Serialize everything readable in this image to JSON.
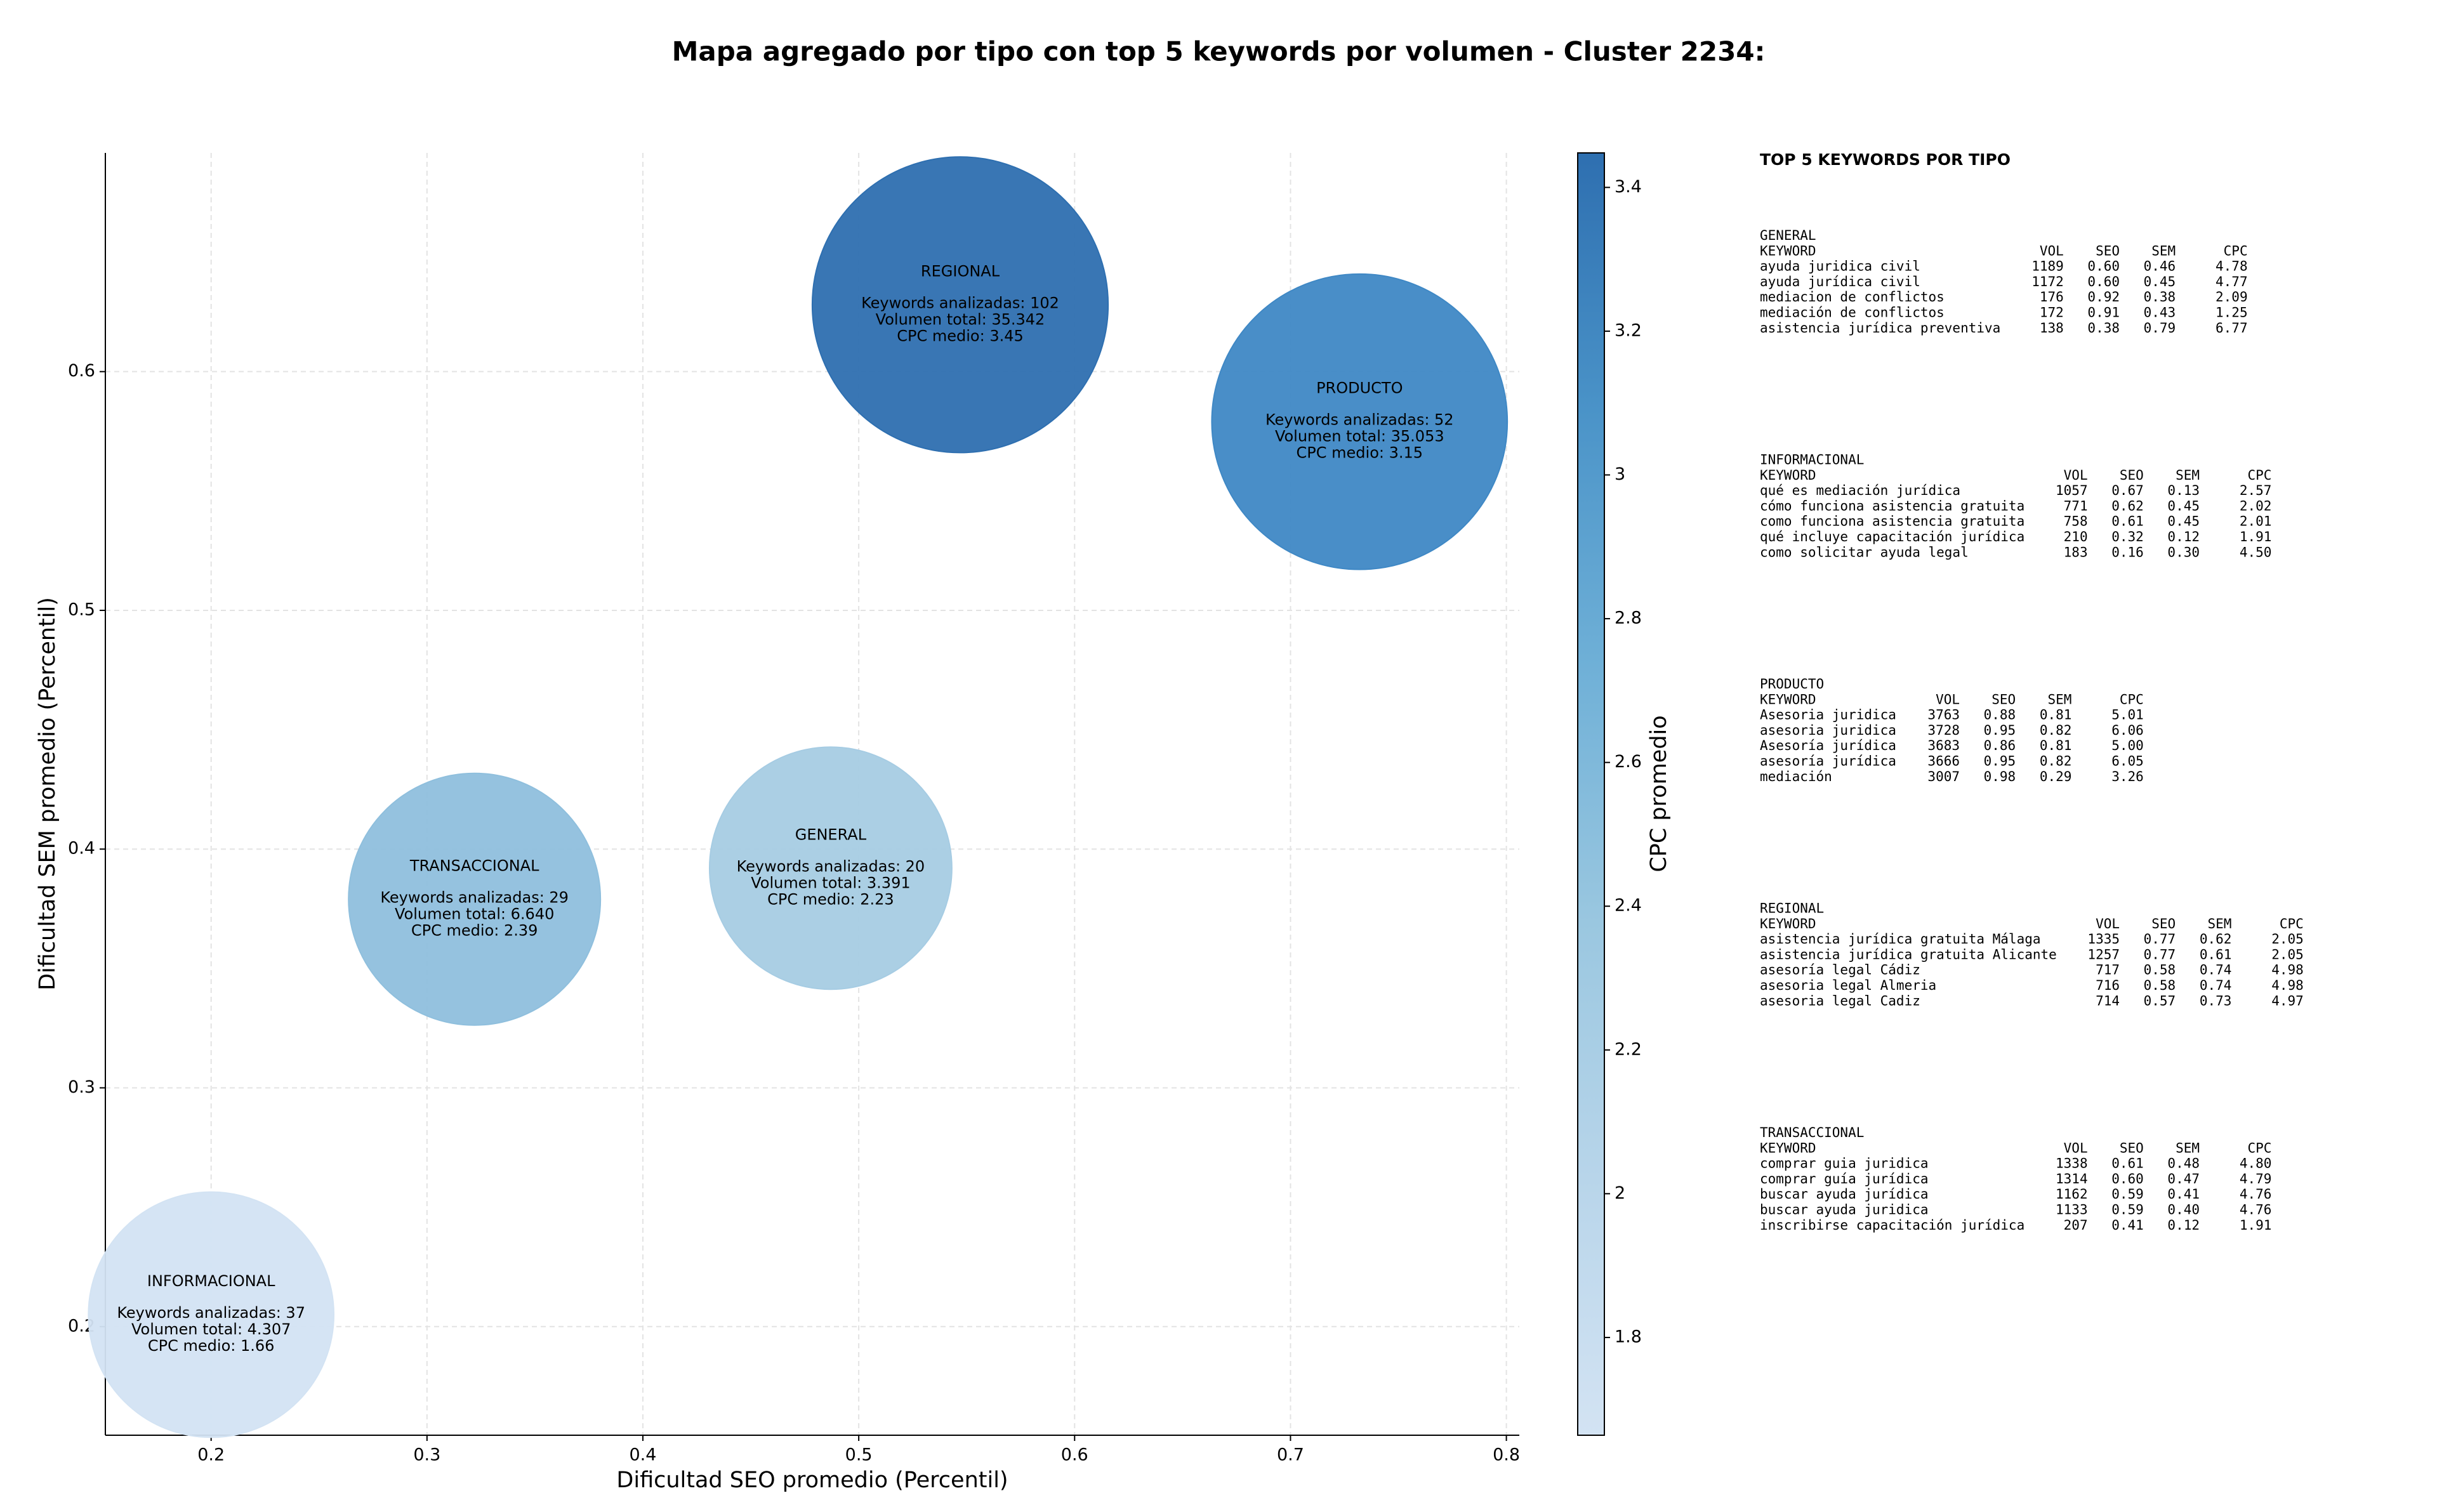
{
  "chart_data": {
    "type": "bubble",
    "title": "Mapa agregado por tipo con top 5 keywords por volumen - Cluster 2234:",
    "xlabel": "Dificultad SEO promedio (Percentil)",
    "ylabel": "Dificultad SEM promedio (Percentil)",
    "xlim": [
      0.151,
      0.806
    ],
    "ylim": [
      0.1545,
      0.6916
    ],
    "xticks": [
      0.2,
      0.3,
      0.4,
      0.5,
      0.6,
      0.7,
      0.8
    ],
    "yticks": [
      0.2,
      0.3,
      0.4,
      0.5,
      0.6
    ],
    "grid": true,
    "points": [
      {
        "name": "REGIONAL",
        "x": 0.547,
        "y": 0.628,
        "volume": 35342,
        "cpc": 3.45,
        "color": "#2e6fb0",
        "lines": [
          "Keywords analizadas: 102",
          "Volumen total: 35.342",
          "CPC medio: 3.45"
        ]
      },
      {
        "name": "PRODUCTO",
        "x": 0.732,
        "y": 0.579,
        "volume": 35053,
        "cpc": 3.15,
        "color": "#3f88c5",
        "lines": [
          "Keywords analizadas: 52",
          "Volumen total: 35.053",
          "CPC medio: 3.15"
        ]
      },
      {
        "name": "GENERAL",
        "x": 0.487,
        "y": 0.392,
        "volume": 3391,
        "cpc": 2.23,
        "color": "#a6cce3",
        "lines": [
          "Keywords analizadas: 20",
          "Volumen total: 3.391",
          "CPC medio: 2.23"
        ]
      },
      {
        "name": "TRANSACCIONAL",
        "x": 0.322,
        "y": 0.379,
        "volume": 6640,
        "cpc": 2.39,
        "color": "#8fbfdd",
        "lines": [
          "Keywords analizadas: 29",
          "Volumen total: 6.640",
          "CPC medio: 2.39"
        ]
      },
      {
        "name": "INFORMACIONAL",
        "x": 0.2,
        "y": 0.205,
        "volume": 4307,
        "cpc": 1.66,
        "color": "#d3e3f3",
        "lines": [
          "Keywords analizadas: 37",
          "Volumen total: 4.307",
          "CPC medio: 1.66"
        ]
      }
    ],
    "colorbar": {
      "label": "CPC promedio",
      "lim": [
        1.664,
        3.448
      ],
      "ticks": [
        1.8,
        2.0,
        2.2,
        2.4,
        2.6,
        2.8,
        3.0,
        3.2,
        3.4
      ],
      "colors": [
        "#d3e3f3",
        "#b8d5ea",
        "#9ac7e0",
        "#6fb0d7",
        "#4a93c8",
        "#2e6fb0"
      ]
    }
  },
  "panel": {
    "title": "TOP 5 KEYWORDS POR TIPO",
    "columns": [
      "KEYWORD",
      "VOL",
      "SEO",
      "SEM",
      "CPC"
    ],
    "blocks": [
      {
        "name": "GENERAL",
        "rows": [
          [
            "ayuda juridica civil",
            "1189",
            "0.60",
            "0.46",
            "4.78"
          ],
          [
            "ayuda jurídica civil",
            "1172",
            "0.60",
            "0.45",
            "4.77"
          ],
          [
            "mediacion de conflictos",
            "176",
            "0.92",
            "0.38",
            "2.09"
          ],
          [
            "mediación de conflictos",
            "172",
            "0.91",
            "0.43",
            "1.25"
          ],
          [
            "asistencia jurídica preventiva",
            "138",
            "0.38",
            "0.79",
            "6.77"
          ]
        ]
      },
      {
        "name": "INFORMACIONAL",
        "rows": [
          [
            "qué es mediación jurídica",
            "1057",
            "0.67",
            "0.13",
            "2.57"
          ],
          [
            "cómo funciona asistencia gratuita",
            "771",
            "0.62",
            "0.45",
            "2.02"
          ],
          [
            "como funciona asistencia gratuita",
            "758",
            "0.61",
            "0.45",
            "2.01"
          ],
          [
            "qué incluye capacitación jurídica",
            "210",
            "0.32",
            "0.12",
            "1.91"
          ],
          [
            "como solicitar ayuda legal",
            "183",
            "0.16",
            "0.30",
            "4.50"
          ]
        ]
      },
      {
        "name": "PRODUCTO",
        "rows": [
          [
            "Asesoria juridica",
            "3763",
            "0.88",
            "0.81",
            "5.01"
          ],
          [
            "asesoria juridica",
            "3728",
            "0.95",
            "0.82",
            "6.06"
          ],
          [
            "Asesoría jurídica",
            "3683",
            "0.86",
            "0.81",
            "5.00"
          ],
          [
            "asesoría jurídica",
            "3666",
            "0.95",
            "0.82",
            "6.05"
          ],
          [
            "mediación",
            "3007",
            "0.98",
            "0.29",
            "3.26"
          ]
        ]
      },
      {
        "name": "REGIONAL",
        "rows": [
          [
            "asistencia jurídica gratuita Málaga",
            "1335",
            "0.77",
            "0.62",
            "2.05"
          ],
          [
            "asistencia jurídica gratuita Alicante",
            "1257",
            "0.77",
            "0.61",
            "2.05"
          ],
          [
            "asesoría legal Cádiz",
            "717",
            "0.58",
            "0.74",
            "4.98"
          ],
          [
            "asesoria legal Almeria",
            "716",
            "0.58",
            "0.74",
            "4.98"
          ],
          [
            "asesoria legal Cadiz",
            "714",
            "0.57",
            "0.73",
            "4.97"
          ]
        ]
      },
      {
        "name": "TRANSACCIONAL",
        "rows": [
          [
            "comprar guia juridica",
            "1338",
            "0.61",
            "0.48",
            "4.80"
          ],
          [
            "comprar guía jurídica",
            "1314",
            "0.60",
            "0.47",
            "4.79"
          ],
          [
            "buscar ayuda jurídica",
            "1162",
            "0.59",
            "0.41",
            "4.76"
          ],
          [
            "buscar ayuda juridica",
            "1133",
            "0.59",
            "0.40",
            "4.76"
          ],
          [
            "inscribirse capacitación jurídica",
            "207",
            "0.41",
            "0.12",
            "1.91"
          ]
        ]
      }
    ]
  }
}
